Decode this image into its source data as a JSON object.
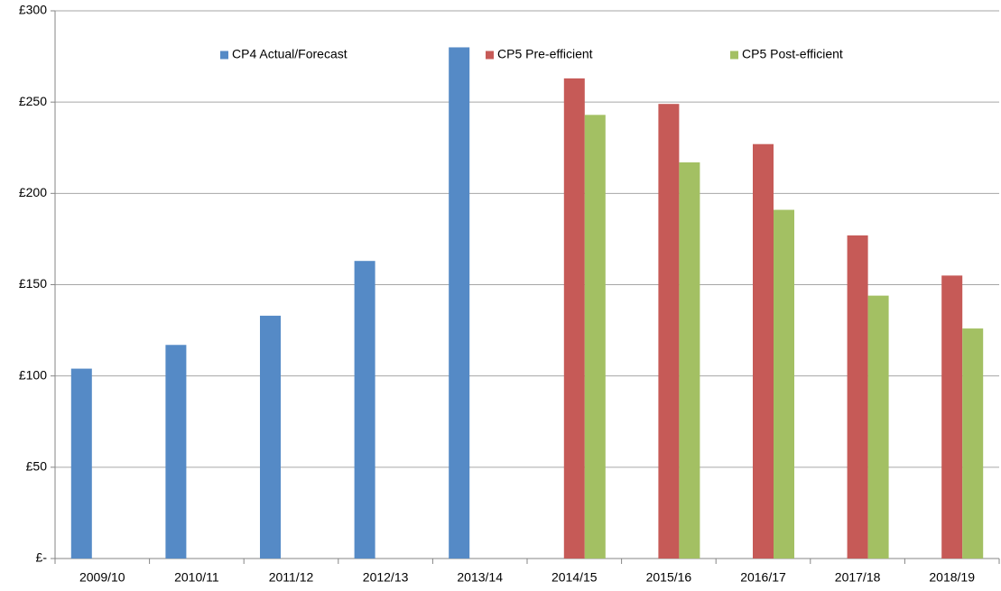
{
  "chart_data": {
    "type": "bar",
    "categories": [
      "2009/10",
      "2010/11",
      "2011/12",
      "2012/13",
      "2013/14",
      "2014/15",
      "2015/16",
      "2016/17",
      "2017/18",
      "2018/19"
    ],
    "series": [
      {
        "name": "CP4 Actual/Forecast",
        "color": "#558ac6",
        "values": [
          104,
          117,
          133,
          163,
          280,
          null,
          null,
          null,
          null,
          null
        ]
      },
      {
        "name": "CP5 Pre-efficient",
        "color": "#c65a57",
        "values": [
          null,
          null,
          null,
          null,
          null,
          263,
          249,
          227,
          177,
          155
        ]
      },
      {
        "name": "CP5 Post-efficient",
        "color": "#a3c063",
        "values": [
          null,
          null,
          null,
          null,
          null,
          243,
          217,
          191,
          144,
          126
        ]
      }
    ],
    "ylim": [
      0,
      300
    ],
    "yticks": [
      {
        "value": 0,
        "label": "£-"
      },
      {
        "value": 50,
        "label": "£50"
      },
      {
        "value": 100,
        "label": "£100"
      },
      {
        "value": 150,
        "label": "£150"
      },
      {
        "value": 200,
        "label": "£200"
      },
      {
        "value": 250,
        "label": "£250"
      },
      {
        "value": 300,
        "label": "£300"
      }
    ],
    "grid": true,
    "legend": "top"
  }
}
